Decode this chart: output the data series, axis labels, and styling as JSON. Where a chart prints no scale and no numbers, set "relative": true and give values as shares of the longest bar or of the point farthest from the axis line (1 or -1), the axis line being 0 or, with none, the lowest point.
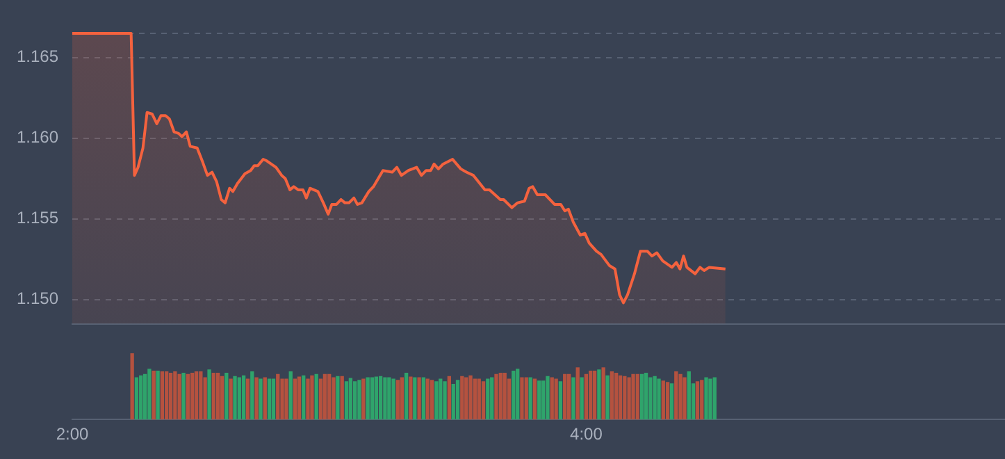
{
  "chart_data": [
    {
      "type": "area",
      "grid": "y",
      "tick_labels": "y",
      "series": [
        {
          "type": "area",
          "color": "#f4623e",
          "x": [
            2.0,
            2.229,
            2.242,
            2.256,
            2.275,
            2.291,
            2.311,
            2.329,
            2.345,
            2.363,
            2.378,
            2.396,
            2.414,
            2.427,
            2.444,
            2.459,
            2.486,
            2.508,
            2.526,
            2.544,
            2.562,
            2.58,
            2.595,
            2.612,
            2.625,
            2.643,
            2.672,
            2.694,
            2.708,
            2.722,
            2.743,
            2.757,
            2.793,
            2.815,
            2.829,
            2.847,
            2.862,
            2.88,
            2.898,
            2.911,
            2.925,
            2.956,
            2.977,
            2.996,
            3.01,
            3.028,
            3.046,
            3.061,
            3.077,
            3.096,
            3.11,
            3.127,
            3.154,
            3.172,
            3.209,
            3.245,
            3.263,
            3.281,
            3.308,
            3.34,
            3.359,
            3.377,
            3.395,
            3.408,
            3.425,
            3.443,
            3.48,
            3.512,
            3.534,
            3.561,
            3.606,
            3.624,
            3.666,
            3.679,
            3.711,
            3.733,
            3.76,
            3.778,
            3.792,
            3.81,
            3.841,
            3.877,
            3.901,
            3.917,
            3.931,
            3.95,
            3.977,
            3.995,
            4.012,
            4.04,
            4.058,
            4.091,
            4.112,
            4.13,
            4.145,
            4.161,
            4.188,
            4.211,
            4.238,
            4.256,
            4.275,
            4.298,
            4.334,
            4.351,
            4.365,
            4.379,
            4.392,
            4.424,
            4.443,
            4.459,
            4.479,
            4.542
          ],
          "values": [
            1.1665,
            1.1665,
            1.1577,
            1.1582,
            1.1594,
            1.1616,
            1.1615,
            1.1609,
            1.1614,
            1.1614,
            1.1612,
            1.1604,
            1.1603,
            1.1601,
            1.1604,
            1.1595,
            1.1594,
            1.1585,
            1.1577,
            1.1579,
            1.1573,
            1.1562,
            1.156,
            1.1569,
            1.1567,
            1.1572,
            1.1578,
            1.158,
            1.1583,
            1.1583,
            1.1587,
            1.1586,
            1.1582,
            1.1577,
            1.1575,
            1.1568,
            1.157,
            1.1568,
            1.1568,
            1.1563,
            1.1569,
            1.1567,
            1.156,
            1.1553,
            1.1559,
            1.1559,
            1.1562,
            1.156,
            1.156,
            1.1563,
            1.1559,
            1.156,
            1.1567,
            1.157,
            1.158,
            1.1579,
            1.1582,
            1.1577,
            1.158,
            1.1582,
            1.1577,
            1.158,
            1.158,
            1.1584,
            1.1581,
            1.1584,
            1.1587,
            1.1581,
            1.1579,
            1.1577,
            1.1568,
            1.1568,
            1.1562,
            1.1562,
            1.1557,
            1.156,
            1.1561,
            1.1569,
            1.157,
            1.1565,
            1.1565,
            1.1559,
            1.1559,
            1.1555,
            1.1556,
            1.1548,
            1.154,
            1.1541,
            1.1535,
            1.153,
            1.1528,
            1.1521,
            1.1519,
            1.1503,
            1.1498,
            1.1503,
            1.1516,
            1.153,
            1.153,
            1.1527,
            1.1529,
            1.1524,
            1.152,
            1.1523,
            1.1519,
            1.1527,
            1.152,
            1.1516,
            1.152,
            1.1518,
            1.152,
            1.1519
          ]
        }
      ],
      "xlim": [
        2,
        5.63
      ],
      "ylim": [
        1.1485,
        1.1665
      ],
      "yticks": [
        {
          "value": 1.15,
          "label": "1.150"
        },
        1.155,
        {
          "value": 1.16,
          "label": "1.160"
        },
        1.165,
        {
          "value": 1.1665,
          "label": null
        }
      ]
    },
    {
      "type": "bar",
      "relative": true,
      "tick_labels": "x",
      "x": [
        2.233,
        2.25,
        2.267,
        2.283,
        2.3,
        2.317,
        2.333,
        2.35,
        2.367,
        2.383,
        2.4,
        2.417,
        2.433,
        2.45,
        2.467,
        2.483,
        2.5,
        2.517,
        2.533,
        2.55,
        2.567,
        2.583,
        2.6,
        2.617,
        2.633,
        2.65,
        2.667,
        2.683,
        2.7,
        2.717,
        2.733,
        2.75,
        2.767,
        2.783,
        2.8,
        2.817,
        2.833,
        2.85,
        2.867,
        2.883,
        2.9,
        2.917,
        2.933,
        2.95,
        2.967,
        2.983,
        3.0,
        3.017,
        3.033,
        3.05,
        3.067,
        3.083,
        3.1,
        3.117,
        3.133,
        3.15,
        3.167,
        3.183,
        3.2,
        3.217,
        3.233,
        3.25,
        3.267,
        3.283,
        3.3,
        3.317,
        3.333,
        3.35,
        3.367,
        3.383,
        3.4,
        3.417,
        3.433,
        3.45,
        3.467,
        3.483,
        3.5,
        3.517,
        3.533,
        3.55,
        3.567,
        3.583,
        3.6,
        3.617,
        3.633,
        3.65,
        3.667,
        3.683,
        3.7,
        3.717,
        3.733,
        3.75,
        3.767,
        3.783,
        3.8,
        3.817,
        3.833,
        3.85,
        3.867,
        3.883,
        3.9,
        3.917,
        3.933,
        3.95,
        3.967,
        3.983,
        4.0,
        4.017,
        4.033,
        4.05,
        4.067,
        4.083,
        4.1,
        4.117,
        4.133,
        4.15,
        4.167,
        4.183,
        4.2,
        4.217,
        4.233,
        4.25,
        4.267,
        4.283,
        4.3,
        4.317,
        4.333,
        4.35,
        4.367,
        4.383,
        4.4,
        4.417,
        4.433,
        4.45,
        4.467,
        4.483,
        4.5
      ],
      "values": [
        1.0,
        0.63,
        0.66,
        0.68,
        0.76,
        0.73,
        0.73,
        0.72,
        0.72,
        0.7,
        0.72,
        0.68,
        0.7,
        0.68,
        0.7,
        0.72,
        0.72,
        0.63,
        0.75,
        0.7,
        0.7,
        0.65,
        0.7,
        0.61,
        0.65,
        0.63,
        0.66,
        0.61,
        0.72,
        0.63,
        0.61,
        0.63,
        0.61,
        0.61,
        0.68,
        0.61,
        0.61,
        0.72,
        0.61,
        0.64,
        0.66,
        0.61,
        0.66,
        0.68,
        0.61,
        0.68,
        0.68,
        0.63,
        0.65,
        0.65,
        0.57,
        0.62,
        0.57,
        0.59,
        0.61,
        0.63,
        0.63,
        0.64,
        0.65,
        0.63,
        0.63,
        0.61,
        0.59,
        0.63,
        0.7,
        0.64,
        0.63,
        0.63,
        0.63,
        0.61,
        0.59,
        0.57,
        0.61,
        0.57,
        0.65,
        0.53,
        0.59,
        0.65,
        0.63,
        0.66,
        0.61,
        0.61,
        0.57,
        0.61,
        0.63,
        0.68,
        0.7,
        0.7,
        0.61,
        0.73,
        0.76,
        0.63,
        0.63,
        0.63,
        0.61,
        0.58,
        0.58,
        0.65,
        0.63,
        0.61,
        0.57,
        0.68,
        0.68,
        0.63,
        0.78,
        0.63,
        0.68,
        0.73,
        0.73,
        0.75,
        0.78,
        0.66,
        0.72,
        0.7,
        0.66,
        0.65,
        0.63,
        0.68,
        0.68,
        0.68,
        0.7,
        0.63,
        0.65,
        0.61,
        0.58,
        0.56,
        0.54,
        0.72,
        0.68,
        0.63,
        0.72,
        0.54,
        0.57,
        0.59,
        0.63,
        0.61,
        0.63
      ],
      "colors": [
        "#b5523f",
        "#2fa46b",
        "#2fa46b",
        "#2fa46b",
        "#2fa46b",
        "#b5523f",
        "#2fa46b",
        "#b5523f",
        "#b5523f",
        "#b5523f",
        "#b5523f",
        "#b5523f",
        "#2fa46b",
        "#b5523f",
        "#b5523f",
        "#b5523f",
        "#b5523f",
        "#b5523f",
        "#2fa46b",
        "#b5523f",
        "#b5523f",
        "#b5523f",
        "#2fa46b",
        "#b5523f",
        "#2fa46b",
        "#2fa46b",
        "#2fa46b",
        "#b5523f",
        "#2fa46b",
        "#b5523f",
        "#2fa46b",
        "#b5523f",
        "#2fa46b",
        "#2fa46b",
        "#b5523f",
        "#b5523f",
        "#b5523f",
        "#2fa46b",
        "#b5523f",
        "#b5523f",
        "#2fa46b",
        "#b5523f",
        "#b5523f",
        "#2fa46b",
        "#b5523f",
        "#b5523f",
        "#b5523f",
        "#b5523f",
        "#2fa46b",
        "#b5523f",
        "#2fa46b",
        "#2fa46b",
        "#2fa46b",
        "#2fa46b",
        "#b5523f",
        "#2fa46b",
        "#2fa46b",
        "#2fa46b",
        "#2fa46b",
        "#2fa46b",
        "#2fa46b",
        "#2fa46b",
        "#b5523f",
        "#b5523f",
        "#2fa46b",
        "#b5523f",
        "#2fa46b",
        "#b5523f",
        "#2fa46b",
        "#b5523f",
        "#b5523f",
        "#2fa46b",
        "#2fa46b",
        "#2fa46b",
        "#b5523f",
        "#2fa46b",
        "#2fa46b",
        "#b5523f",
        "#b5523f",
        "#b5523f",
        "#b5523f",
        "#b5523f",
        "#b5523f",
        "#2fa46b",
        "#2fa46b",
        "#b5523f",
        "#b5523f",
        "#b5523f",
        "#b5523f",
        "#2fa46b",
        "#2fa46b",
        "#b5523f",
        "#b5523f",
        "#2fa46b",
        "#b5523f",
        "#2fa46b",
        "#2fa46b",
        "#2fa46b",
        "#b5523f",
        "#b5523f",
        "#2fa46b",
        "#b5523f",
        "#b5523f",
        "#2fa46b",
        "#b5523f",
        "#2fa46b",
        "#b5523f",
        "#b5523f",
        "#b5523f",
        "#2fa46b",
        "#b5523f",
        "#2fa46b",
        "#b5523f",
        "#b5523f",
        "#b5523f",
        "#b5523f",
        "#b5523f",
        "#b5523f",
        "#b5523f",
        "#2fa46b",
        "#2fa46b",
        "#2fa46b",
        "#2fa46b",
        "#2fa46b",
        "#b5523f",
        "#b5523f",
        "#2fa46b",
        "#b5523f",
        "#b5523f",
        "#b5523f",
        "#2fa46b",
        "#2fa46b",
        "#b5523f",
        "#b5523f",
        "#2fa46b",
        "#2fa46b",
        "#2fa46b"
      ],
      "xlim": [
        2,
        5.63
      ],
      "xticks": [
        {
          "value": 2,
          "label": "2:00"
        },
        {
          "value": 4,
          "label": "4:00"
        }
      ]
    }
  ]
}
